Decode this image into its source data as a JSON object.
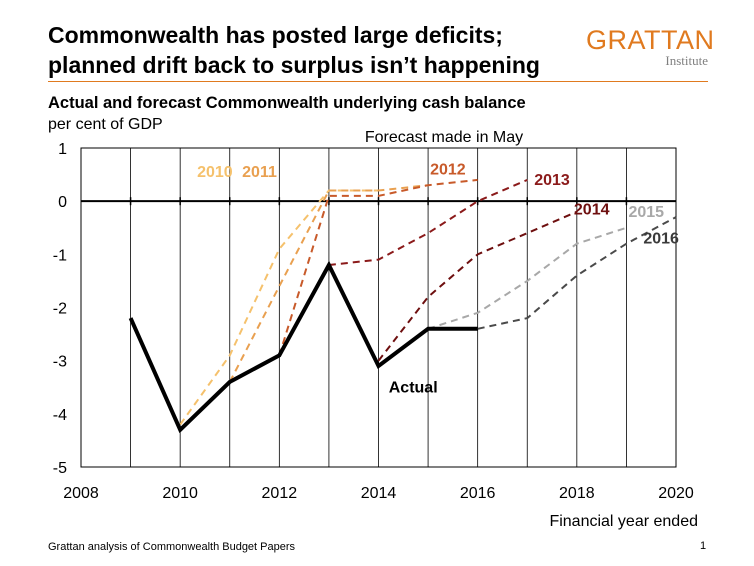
{
  "header": {
    "title_line1": "Commonwealth has posted large deficits;",
    "title_line2": "planned drift back to surplus isn’t happening"
  },
  "logo": {
    "main": "GRATTAN",
    "sub": "Institute",
    "color": "#e07a1f"
  },
  "footer": {
    "source": "Grattan analysis of Commonwealth Budget Papers",
    "page": "1"
  },
  "chart_data": {
    "type": "line",
    "title": "Actual and forecast Commonwealth underlying cash balance",
    "ylabel": "per cent of GDP",
    "xlabel": "Financial year ended",
    "annotation": "Forecast made in May",
    "xlim": [
      2008,
      2020
    ],
    "ylim": [
      -5,
      1
    ],
    "x_ticks": [
      "2008",
      "2010",
      "2012",
      "2014",
      "2016",
      "2018",
      "2020"
    ],
    "y_ticks": [
      "1",
      "0",
      "-1",
      "-2",
      "-3",
      "-4",
      "-5"
    ],
    "series": [
      {
        "name": "Actual",
        "style": "solid",
        "color": "#000000",
        "points": [
          [
            2009,
            -2.2
          ],
          [
            2010,
            -4.3
          ],
          [
            2011,
            -3.4
          ],
          [
            2012,
            -2.9
          ],
          [
            2013,
            -1.2
          ],
          [
            2014,
            -3.1
          ],
          [
            2015,
            -2.4
          ],
          [
            2016,
            -2.4
          ]
        ]
      },
      {
        "name": "2010",
        "style": "dashed",
        "color": "#f5c16c",
        "points": [
          [
            2010,
            -4.2
          ],
          [
            2011,
            -2.9
          ],
          [
            2012,
            -0.9
          ],
          [
            2013,
            0.2
          ],
          [
            2014,
            0.2
          ]
        ]
      },
      {
        "name": "2011",
        "style": "dashed",
        "color": "#e9a050",
        "points": [
          [
            2011,
            -3.4
          ],
          [
            2012,
            -1.6
          ],
          [
            2013,
            0.2
          ],
          [
            2014,
            0.2
          ],
          [
            2015,
            0.3
          ]
        ]
      },
      {
        "name": "2012",
        "style": "dashed",
        "color": "#c85a2a",
        "points": [
          [
            2012,
            -2.9
          ],
          [
            2013,
            0.1
          ],
          [
            2014,
            0.1
          ],
          [
            2015,
            0.3
          ],
          [
            2016,
            0.4
          ]
        ]
      },
      {
        "name": "2013",
        "style": "dashed",
        "color": "#8b1a1a",
        "points": [
          [
            2013,
            -1.2
          ],
          [
            2014,
            -1.1
          ],
          [
            2015,
            -0.6
          ],
          [
            2016,
            0.0
          ],
          [
            2017,
            0.4
          ]
        ]
      },
      {
        "name": "2014",
        "style": "dashed",
        "color": "#6e0f0f",
        "points": [
          [
            2014,
            -3.0
          ],
          [
            2015,
            -1.8
          ],
          [
            2016,
            -1.0
          ],
          [
            2017,
            -0.6
          ],
          [
            2018,
            -0.2
          ]
        ]
      },
      {
        "name": "2015",
        "style": "dashed",
        "color": "#a8a8a8",
        "points": [
          [
            2015,
            -2.4
          ],
          [
            2016,
            -2.1
          ],
          [
            2017,
            -1.5
          ],
          [
            2018,
            -0.8
          ],
          [
            2019,
            -0.5
          ]
        ]
      },
      {
        "name": "2016",
        "style": "dashed",
        "color": "#4a4a4a",
        "points": [
          [
            2016,
            -2.4
          ],
          [
            2017,
            -2.2
          ],
          [
            2018,
            -1.4
          ],
          [
            2019,
            -0.8
          ],
          [
            2020,
            -0.3
          ]
        ]
      }
    ],
    "series_labels": [
      {
        "text": "2010",
        "x": 2010.7,
        "y": 0.45,
        "color": "#f5c16c"
      },
      {
        "text": "2011",
        "x": 2011.6,
        "y": 0.45,
        "color": "#e9a050"
      },
      {
        "text": "2012",
        "x": 2015.4,
        "y": 0.5,
        "color": "#c85a2a"
      },
      {
        "text": "2013",
        "x": 2017.5,
        "y": 0.3,
        "color": "#8b1a1a"
      },
      {
        "text": "2014",
        "x": 2018.3,
        "y": -0.25,
        "color": "#6e0f0f"
      },
      {
        "text": "2015",
        "x": 2019.4,
        "y": -0.3,
        "color": "#a8a8a8"
      },
      {
        "text": "2016",
        "x": 2019.7,
        "y": -0.8,
        "color": "#3a3a3a"
      },
      {
        "text": "Actual",
        "x": 2014.7,
        "y": -3.6,
        "color": "#000000"
      }
    ]
  }
}
